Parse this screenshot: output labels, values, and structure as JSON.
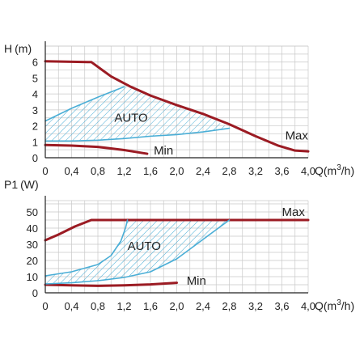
{
  "colors": {
    "max_curve": "#9b1b23",
    "auto_curve": "#4aaed6",
    "hatch": "#4aaed6",
    "grid": "#c8c8c8",
    "axis": "#222222"
  },
  "chart_data": [
    {
      "type": "line",
      "ylabel": "H (m)",
      "xlabel": "Q(m³/h)",
      "ylabel_parts": [
        "H",
        "(m)"
      ],
      "xlabel_parts": [
        "Q(m",
        "3",
        "/h)"
      ],
      "xlim": [
        0,
        4.0
      ],
      "ylim": [
        0,
        7
      ],
      "x_ticks": [
        0,
        0.4,
        0.8,
        1.2,
        1.6,
        2.0,
        2.4,
        2.8,
        3.2,
        3.6,
        4.0
      ],
      "x_tick_labels": [
        "0",
        "0,4",
        "0,8",
        "1,2",
        "1,6",
        "2,0",
        "2,4",
        "2,8",
        "3,2",
        "3,6",
        "4,0"
      ],
      "y_ticks": [
        0,
        1,
        2,
        3,
        4,
        5,
        6
      ],
      "y_tick_labels": [
        "0",
        "1",
        "2",
        "3",
        "4",
        "5",
        "6"
      ],
      "grid": true,
      "series": [
        {
          "name": "Max",
          "role": "max",
          "x": [
            0,
            0.65,
            0.7,
            1.0,
            1.3,
            1.6,
            2.0,
            2.4,
            2.8,
            3.2,
            3.55,
            3.8,
            4.0
          ],
          "y": [
            6.05,
            6.0,
            6.0,
            5.1,
            4.45,
            3.9,
            3.3,
            2.75,
            2.1,
            1.35,
            0.75,
            0.45,
            0.4
          ]
        },
        {
          "name": "Min",
          "role": "min",
          "x": [
            0,
            0.4,
            0.8,
            1.2,
            1.55
          ],
          "y": [
            0.8,
            0.76,
            0.68,
            0.48,
            0.25
          ]
        },
        {
          "name": "",
          "role": "auto_upper",
          "x": [
            0,
            0.4,
            0.8,
            1.2
          ],
          "y": [
            2.3,
            3.1,
            3.8,
            4.45
          ]
        },
        {
          "name": "",
          "role": "auto_lower",
          "x": [
            0,
            0.4,
            0.8,
            1.2,
            1.6,
            2.0,
            2.4,
            2.8
          ],
          "y": [
            1.05,
            1.05,
            1.1,
            1.2,
            1.35,
            1.45,
            1.62,
            1.85
          ]
        }
      ],
      "annotations": [
        {
          "text": "AUTO",
          "x": 1.05,
          "y": 2.5
        },
        {
          "text": "Max",
          "x": 3.65,
          "y": 1.4
        },
        {
          "text": "Min",
          "x": 1.65,
          "y": 0.45
        }
      ]
    },
    {
      "type": "line",
      "ylabel": "P1 (W)",
      "xlabel": "Q(m³/h)",
      "ylabel_parts": [
        "P1",
        "(W)"
      ],
      "xlabel_parts": [
        "Q(m",
        "3",
        "/h)"
      ],
      "xlim": [
        0,
        4.0
      ],
      "ylim": [
        0,
        57
      ],
      "x_ticks": [
        0,
        0.4,
        0.8,
        1.2,
        1.6,
        2.0,
        2.4,
        2.8,
        3.2,
        3.6,
        4.0
      ],
      "x_tick_labels": [
        "0",
        "0,4",
        "0,8",
        "1,2",
        "1,6",
        "2,0",
        "2,4",
        "2,8",
        "3,2",
        "3,6",
        "4,0"
      ],
      "y_ticks": [
        0,
        10,
        20,
        30,
        40,
        50
      ],
      "y_tick_labels": [
        "0",
        "10",
        "20",
        "30",
        "40",
        "50"
      ],
      "grid": true,
      "series": [
        {
          "name": "Max",
          "role": "max",
          "x": [
            0,
            0.2,
            0.45,
            0.7,
            1.0,
            2.0,
            3.0,
            4.0
          ],
          "y": [
            32.5,
            36,
            41,
            45,
            45,
            45,
            45,
            45
          ]
        },
        {
          "name": "Min",
          "role": "min",
          "x": [
            0,
            0.4,
            0.8,
            1.2,
            1.6,
            2.0
          ],
          "y": [
            5,
            4.6,
            4.3,
            4.6,
            5.2,
            6.2
          ]
        },
        {
          "name": "",
          "role": "auto_upper",
          "x": [
            0,
            0.4,
            0.8,
            1.0,
            1.15,
            1.22,
            1.25
          ],
          "y": [
            10.5,
            13,
            17.5,
            23,
            32,
            40,
            45
          ]
        },
        {
          "name": "",
          "role": "auto_lower",
          "x": [
            0,
            0.4,
            0.8,
            1.2,
            1.6,
            2.0,
            2.4,
            2.8
          ],
          "y": [
            5.5,
            6.2,
            7.5,
            9.5,
            13,
            21,
            33,
            45
          ]
        }
      ],
      "annotations": [
        {
          "text": "AUTO",
          "x": 1.25,
          "y": 29
        },
        {
          "text": "Max",
          "x": 3.6,
          "y": 50
        },
        {
          "text": "Min",
          "x": 2.15,
          "y": 7.5
        }
      ]
    }
  ]
}
